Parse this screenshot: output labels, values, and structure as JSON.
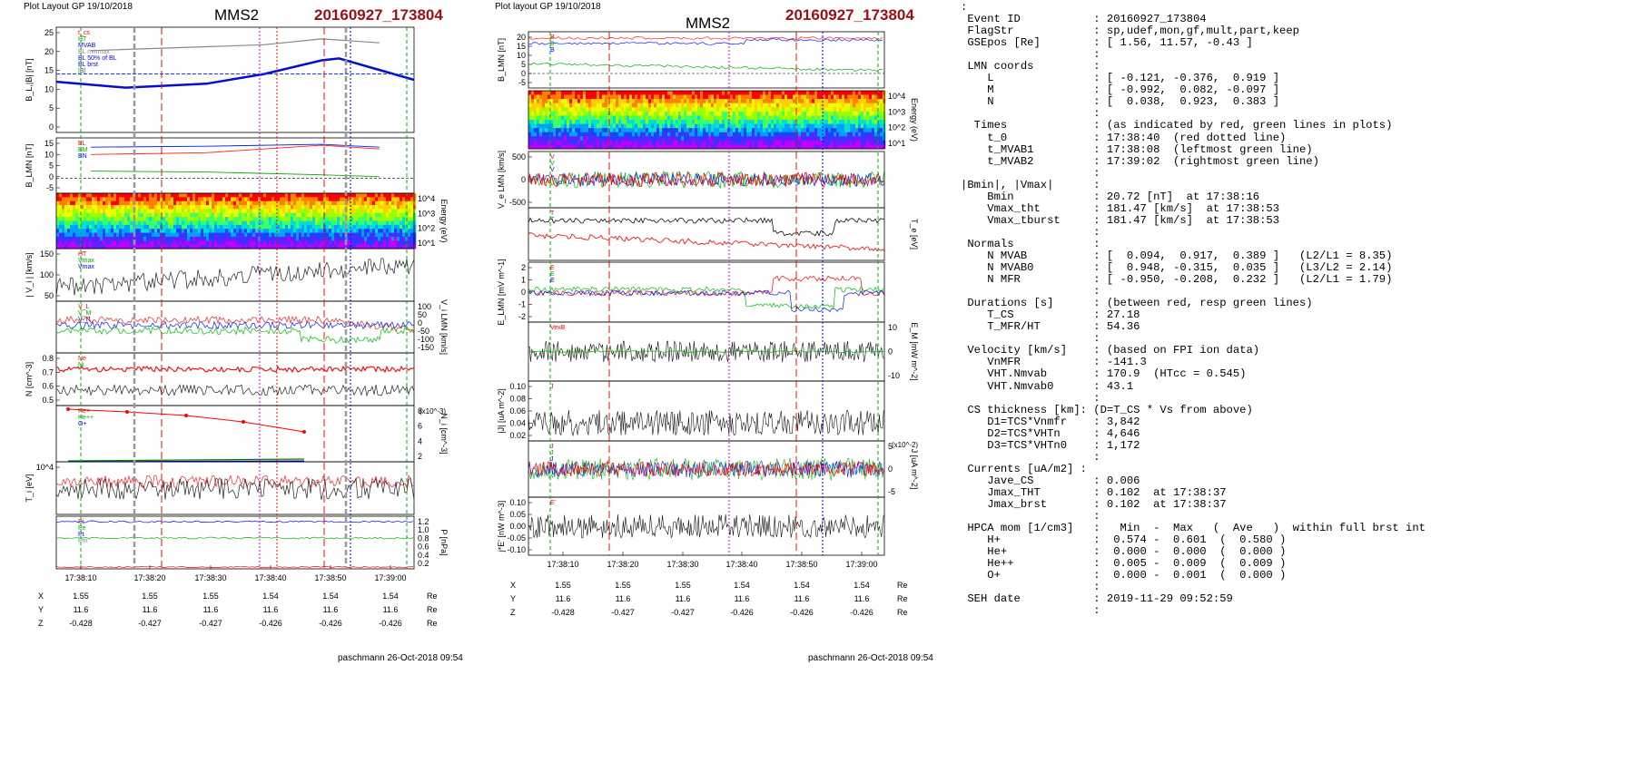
{
  "left": {
    "header": "Plot Layout GP 19/10/2018",
    "spacecraft": "MMS2",
    "event": "20160927_173804",
    "credit": "paschmann 26-Oct-2018 09:54",
    "panels": [
      {
        "ylabel": "B_L,|B| [nT]",
        "ticks": [
          "25",
          "20",
          "15",
          "10",
          "5",
          "0"
        ],
        "rticks": [],
        "rlabel": "",
        "legend": [
          "t_cs",
          "HT",
          "MVAB",
          "BL minmax",
          "BL 50% of BL",
          "BL brst",
          "|B|"
        ]
      },
      {
        "ylabel": "B_LMN [nT]",
        "ticks": [
          "15",
          "10",
          "5",
          "0",
          "-5"
        ],
        "rticks": [],
        "rlabel": "",
        "legend": [
          "BL",
          "BM",
          "BN"
        ]
      },
      {
        "ylabel": "",
        "ticks": [],
        "rticks": [
          "10^4",
          "10^3",
          "10^2",
          "10^1"
        ],
        "rlabel": "Energy (eV)",
        "legend": []
      },
      {
        "ylabel": "| V_i | [km/s]",
        "ticks": [
          "150",
          "100",
          "50"
        ],
        "rticks": [],
        "rlabel": "",
        "legend": [
          "HT",
          "Vmax",
          "Vmax"
        ]
      },
      {
        "ylabel": "",
        "ticks": [],
        "rticks": [
          "100",
          "50",
          "0",
          "-50",
          "-100",
          "-150"
        ],
        "rlabel": "V_i LMN [km/s]",
        "legend": [
          "V_L",
          "V_M",
          "V_N"
        ]
      },
      {
        "ylabel": "N [cm^-3]",
        "ticks": [
          "0.8",
          "0.7",
          "0.6",
          "0.5"
        ],
        "rticks": [],
        "rlabel": "",
        "legend": [
          "Ne",
          "Ni"
        ]
      },
      {
        "ylabel": "",
        "ticks": [],
        "rticks": [
          "8",
          "6",
          "4",
          "2"
        ],
        "rlabel": "N_i [cm^-3]",
        "legend": [
          "He+",
          "He++",
          "O+"
        ]
      },
      {
        "ylabel": "T_i [eV]",
        "ticks": [
          "10^4"
        ],
        "rticks": [],
        "rlabel": "",
        "legend": []
      },
      {
        "ylabel": "",
        "ticks": [],
        "rticks": [
          "1.2",
          "1.0",
          "0.8",
          "0.6",
          "0.4",
          "0.2"
        ],
        "rlabel": "P [nPa]",
        "legend": [
          "Pi",
          "Pe",
          "Pt",
          "Pm"
        ]
      }
    ],
    "exponent_label": "(x10^-3)",
    "xticks": [
      "17:38:10",
      "17:38:20",
      "17:38:30",
      "17:38:40",
      "17:38:50",
      "17:39:00"
    ],
    "coords": [
      {
        "axis": "X",
        "values": [
          "1.55",
          "1.55",
          "1.55",
          "1.54",
          "1.54",
          "1.54"
        ],
        "unit": "Re"
      },
      {
        "axis": "Y",
        "values": [
          "11.6",
          "11.6",
          "11.6",
          "11.6",
          "11.6",
          "11.6"
        ],
        "unit": "Re"
      },
      {
        "axis": "Z",
        "values": [
          "-0.428",
          "-0.427",
          "-0.427",
          "-0.426",
          "-0.426",
          "-0.426"
        ],
        "unit": "Re"
      }
    ]
  },
  "middle": {
    "header": "Plot layout GP 19/10/2018",
    "spacecraft": "MMS2",
    "event": "20160927_173804",
    "credit": "paschmann 26-Oct-2018 09:54",
    "panels": [
      {
        "ylabel": "B_LMN [nT]",
        "ticks": [
          "20",
          "15",
          "10",
          "5",
          "0",
          "-5"
        ],
        "rticks": [],
        "rlabel": "",
        "legend": [
          "B",
          "B",
          "B"
        ]
      },
      {
        "ylabel": "",
        "ticks": [],
        "rticks": [
          "10^4",
          "10^3",
          "10^2",
          "10^1"
        ],
        "rlabel": "Energy (eV)",
        "legend": []
      },
      {
        "ylabel": "V_e LMN [km/s]",
        "ticks": [
          "500",
          "0",
          "-500"
        ],
        "rticks": [],
        "rlabel": "",
        "legend": [
          "V",
          "V",
          "V"
        ]
      },
      {
        "ylabel": "",
        "ticks": [],
        "rticks": [],
        "rlabel": "T_e [eV]",
        "legend": [
          "T",
          "T"
        ]
      },
      {
        "ylabel": "E_LMN [mV m^-1]",
        "ticks": [
          "2",
          "1",
          "0",
          "-1",
          "-2"
        ],
        "rticks": [],
        "rlabel": "",
        "legend": [
          "E",
          "E",
          "E"
        ]
      },
      {
        "ylabel": "",
        "ticks": [],
        "rticks": [
          "10",
          "0",
          "-10"
        ],
        "rlabel": "E_M [mW m^-2]",
        "legend": [
          "VexB"
        ]
      },
      {
        "ylabel": "|J| [uA m^-2]",
        "ticks": [
          "0.10",
          "0.08",
          "0.06",
          "0.04",
          "0.02"
        ],
        "rticks": [],
        "rlabel": "",
        "legend": [
          "J"
        ]
      },
      {
        "ylabel": "",
        "ticks": [],
        "rticks": [
          "5",
          "0",
          "-5"
        ],
        "rlabel": "J [uA m^-2]",
        "legend": [
          "J",
          "J",
          "J"
        ]
      },
      {
        "ylabel": "j*E' [nW m^-3]",
        "ticks": [
          "0.10",
          "0.05",
          "0.00",
          "-0.05",
          "-0.10"
        ],
        "rticks": [],
        "rlabel": "",
        "legend": [
          "E'"
        ]
      }
    ],
    "exponent_label": "(x10^-2)",
    "xticks": [
      "17:38:10",
      "17:38:20",
      "17:38:30",
      "17:38:40",
      "17:38:50",
      "17:39:00"
    ],
    "coords": [
      {
        "axis": "X",
        "values": [
          "1.55",
          "1.55",
          "1.55",
          "1.54",
          "1.54",
          "1.54"
        ],
        "unit": "Re"
      },
      {
        "axis": "Y",
        "values": [
          "11.6",
          "11.6",
          "11.6",
          "11.6",
          "11.6",
          "11.6"
        ],
        "unit": "Re"
      },
      {
        "axis": "Z",
        "values": [
          "-0.428",
          "-0.427",
          "-0.427",
          "-0.426",
          "-0.426",
          "-0.426"
        ],
        "unit": "Re"
      }
    ]
  },
  "info_lines": [
    ":",
    " Event ID           : 20160927_173804",
    " FlagStr            : sp,udef,mon,gf,mult,part,keep",
    " GSEpos [Re]        : [ 1.56, 11.57, -0.43 ]",
    "                    :",
    " LMN coords         :",
    "    L               : [ -0.121, -0.376,  0.919 ]",
    "    M               : [ -0.992,  0.082, -0.097 ]",
    "    N               : [  0.038,  0.923,  0.383 ]",
    "                    :",
    "  Times             : (as indicated by red, green lines in plots)",
    "    t_0             : 17:38:40  (red dotted line)",
    "    t_MVAB1         : 17:38:08  (leftmost green line)",
    "    t_MVAB2         : 17:39:02  (rightmost green line)",
    "                    :",
    "|Bmin|, |Vmax|      :",
    "    Bmin            : 20.72 [nT]  at 17:38:16",
    "    Vmax_tht        : 181.47 [km/s]  at 17:38:53",
    "    Vmax_tburst     : 181.47 [km/s]  at 17:38:53",
    "                    :",
    " Normals            :",
    "    N MVAB          : [  0.094,  0.917,  0.389 ]   (L2/L1 = 8.35)",
    "    N MVAB0         : [  0.948, -0.315,  0.035 ]   (L3/L2 = 2.14)",
    "    N MFR           : [ -0.950, -0.208,  0.232 ]   (L2/L1 = 1.79)",
    "                    :",
    " Durations [s]      : (between red, resp green lines)",
    "    T_CS            : 27.18",
    "    T_MFR/HT        : 54.36",
    "                    :",
    " Velocity [km/s]    : (based on FPI ion data)",
    "    VnMFR           : -141.3",
    "    VHT.Nmvab       : 170.9  (HTcc = 0.545)",
    "    VHT.Nmvab0      : 43.1",
    "                    :",
    " CS thickness [km]: (D=T_CS * Vs from above)",
    "    D1=TCS*Vnmfr    : 3,842",
    "    D2=TCS*VHTn     : 4,646",
    "    D3=TCS*VHTn0    : 1,172",
    "                    :",
    " Currents [uA/m2] :",
    "    Jave_CS         : 0.006",
    "    Jmax_THT        : 0.102  at 17:38:37",
    "    Jmax_brst       : 0.102  at 17:38:37",
    "                    :",
    " HPCA mom [1/cm3]   :   Min  -  Max   (  Ave   )  within full brst int",
    "    H+              :  0.574 -  0.601  (  0.580 )",
    "    He+             :  0.000 -  0.000  (  0.000 )",
    "    He++            :  0.005 -  0.009  (  0.009 )",
    "    O+              :  0.000 -  0.001  (  0.000 )",
    "                    :",
    " SEH date           : 2019-11-29 09:52:59",
    "                    :"
  ],
  "chart_data": [
    {
      "type": "line",
      "title": "MMS2 20160927_173804",
      "xlabel": "",
      "x_range": [
        "17:38:04",
        "17:39:06"
      ],
      "series": [
        {
          "name": "|B|",
          "x": [
            "17:38:10",
            "17:38:20",
            "17:38:30",
            "17:38:40",
            "17:38:50",
            "17:39:00"
          ],
          "values": [
            21,
            21.5,
            22,
            22.5,
            24,
            23
          ]
        },
        {
          "name": "BL",
          "x": [
            "17:38:04",
            "17:38:16",
            "17:38:30",
            "17:38:40",
            "17:38:50",
            "17:38:53",
            "17:39:06"
          ],
          "values": [
            13,
            11.5,
            12.5,
            15,
            18.5,
            19,
            13.5
          ]
        }
      ],
      "ylim": [
        0,
        27
      ]
    },
    {
      "type": "line",
      "title": "MMS2 20160927_173804",
      "xlabel": "",
      "x_range": [
        "17:38:04",
        "17:39:06"
      ],
      "series": [
        {
          "name": "B_L",
          "x": [
            "17:38:10",
            "17:38:30",
            "17:38:50",
            "17:39:00"
          ],
          "values": [
            13,
            14,
            18,
            16
          ]
        },
        {
          "name": "B_M",
          "x": [
            "17:38:10",
            "17:38:30",
            "17:38:50",
            "17:39:00"
          ],
          "values": [
            17,
            17.5,
            18.5,
            17
          ]
        },
        {
          "name": "B_N",
          "x": [
            "17:38:10",
            "17:38:30",
            "17:38:50",
            "17:39:00"
          ],
          "values": [
            4,
            3.5,
            2,
            1
          ]
        }
      ],
      "ylim": [
        -8,
        22
      ]
    }
  ]
}
